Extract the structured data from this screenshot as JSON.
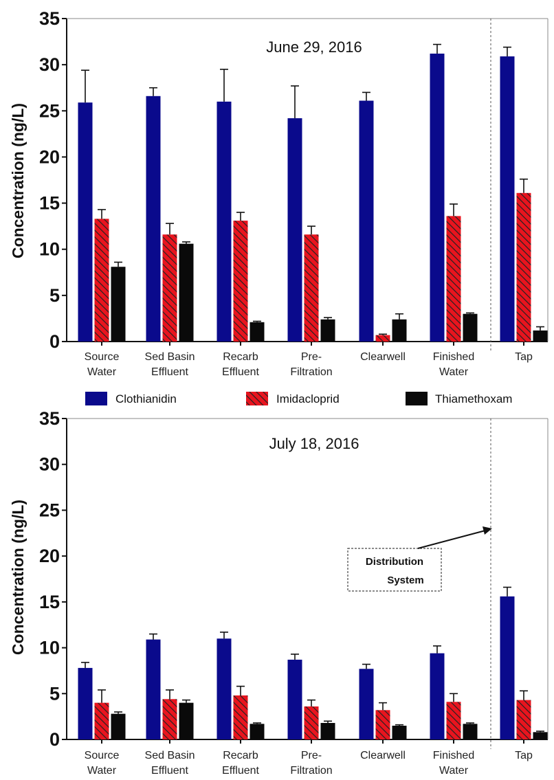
{
  "colors": {
    "Clothianidin": "#0a0a8c",
    "Imidacloprid": "#e8141e",
    "Thiamethoxam": "#0a0a0a",
    "hatch": "#222222"
  },
  "legend": [
    "Clothianidin",
    "Imidacloprid",
    "Thiamethoxam"
  ],
  "chart_data": [
    {
      "type": "bar",
      "title": "June 29, 2016",
      "ylabel": "Concentration (ng/L)",
      "ylim": [
        0,
        35
      ],
      "yticks": [
        "0",
        "5",
        "10",
        "15",
        "20",
        "25",
        "30",
        "35"
      ],
      "categories": [
        [
          "Source",
          "Water"
        ],
        [
          "Sed Basin",
          "Effluent"
        ],
        [
          "Recarb",
          "Effluent"
        ],
        [
          "Pre-",
          "Filtration"
        ],
        [
          "Clearwell"
        ],
        [
          "Finished",
          "Water"
        ],
        [
          "Tap"
        ]
      ],
      "series": [
        {
          "name": "Clothianidin",
          "values": [
            25.9,
            26.6,
            26.0,
            24.2,
            26.1,
            31.2,
            30.9
          ],
          "errors": [
            3.5,
            0.9,
            3.5,
            3.5,
            0.9,
            1.0,
            1.0
          ]
        },
        {
          "name": "Imidacloprid",
          "values": [
            13.3,
            11.6,
            13.1,
            11.6,
            0.7,
            13.6,
            16.1
          ],
          "errors": [
            1.0,
            1.2,
            0.9,
            0.9,
            0.1,
            1.3,
            1.5
          ]
        },
        {
          "name": "Thiamethoxam",
          "values": [
            8.1,
            10.6,
            2.1,
            2.4,
            2.4,
            3.0,
            1.2
          ],
          "errors": [
            0.5,
            0.2,
            0.1,
            0.2,
            0.6,
            0.1,
            0.4
          ]
        }
      ],
      "separator_after_index": 5
    },
    {
      "type": "bar",
      "title": "July 18, 2016",
      "ylabel": "Concentration (ng/L)",
      "ylim": [
        0,
        35
      ],
      "yticks": [
        "0",
        "5",
        "10",
        "15",
        "20",
        "25",
        "30",
        "35"
      ],
      "categories": [
        [
          "Source",
          "Water"
        ],
        [
          "Sed Basin",
          "Effluent"
        ],
        [
          "Recarb",
          "Effluent"
        ],
        [
          "Pre-",
          "Filtration"
        ],
        [
          "Clearwell"
        ],
        [
          "Finished",
          "Water"
        ],
        [
          "Tap"
        ]
      ],
      "series": [
        {
          "name": "Clothianidin",
          "values": [
            7.8,
            10.9,
            11.0,
            8.7,
            7.7,
            9.4,
            15.6
          ],
          "errors": [
            0.6,
            0.6,
            0.7,
            0.6,
            0.5,
            0.8,
            1.0
          ]
        },
        {
          "name": "Imidacloprid",
          "values": [
            4.0,
            4.4,
            4.8,
            3.6,
            3.2,
            4.1,
            4.3
          ],
          "errors": [
            1.4,
            1.0,
            1.0,
            0.7,
            0.8,
            0.9,
            1.0
          ]
        },
        {
          "name": "Thiamethoxam",
          "values": [
            2.8,
            4.0,
            1.7,
            1.8,
            1.5,
            1.7,
            0.8
          ],
          "errors": [
            0.2,
            0.3,
            0.1,
            0.2,
            0.1,
            0.1,
            0.1
          ]
        }
      ],
      "separator_after_index": 5,
      "annotation": [
        "Distribution",
        "System"
      ]
    }
  ]
}
